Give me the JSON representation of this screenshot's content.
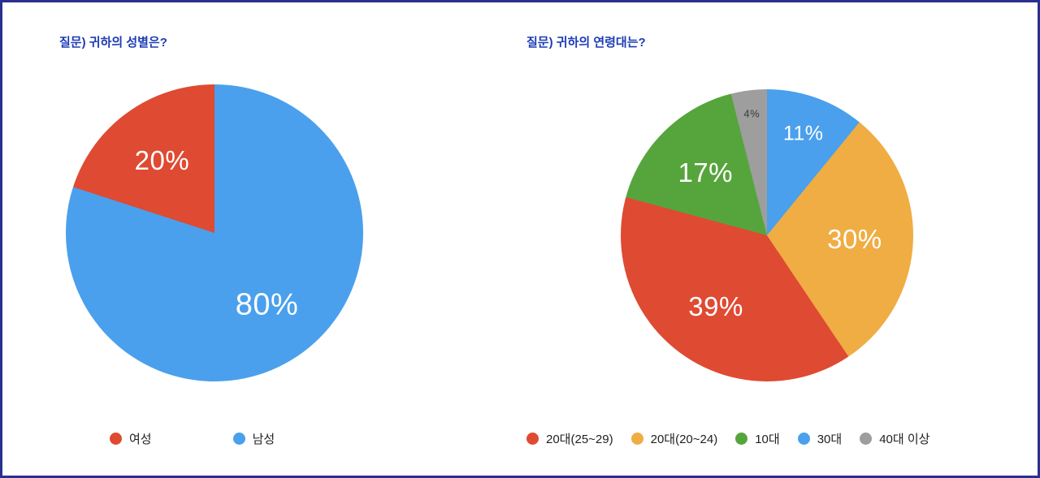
{
  "page": {
    "background": "#ffffff",
    "border_color": "#2b2f8f",
    "title_color": "#1d3cb5"
  },
  "chart_data": [
    {
      "type": "pie",
      "title": "질문) 귀하의 성별은?",
      "labels": [
        "남성",
        "여성"
      ],
      "values": [
        80,
        20
      ],
      "colors": [
        "#4aa0ec",
        "#df4a32"
      ],
      "slice_labels": [
        "80%",
        "20%"
      ],
      "slice_label_colors": [
        "#ffffff",
        "#ffffff"
      ],
      "legend_position": "bottom",
      "legend": [
        {
          "label": "여성",
          "color": "#df4a32"
        },
        {
          "label": "남성",
          "color": "#4aa0ec"
        }
      ]
    },
    {
      "type": "pie",
      "title": "질문) 귀하의 연령대는?",
      "labels": [
        "30대",
        "20대(20~24)",
        "20대(25~29)",
        "10대",
        "40대 이상"
      ],
      "values": [
        11,
        30,
        39,
        17,
        4
      ],
      "colors": [
        "#4aa0ec",
        "#efad43",
        "#df4a32",
        "#56a53c",
        "#9e9e9e"
      ],
      "slice_labels": [
        "11%",
        "30%",
        "39%",
        "17%",
        "4%"
      ],
      "slice_label_colors": [
        "#ffffff",
        "#ffffff",
        "#ffffff",
        "#ffffff",
        "#3a3a3a"
      ],
      "legend_position": "bottom",
      "legend": [
        {
          "label": "20대(25~29)",
          "color": "#df4a32"
        },
        {
          "label": "20대(20~24)",
          "color": "#efad43"
        },
        {
          "label": "10대",
          "color": "#56a53c"
        },
        {
          "label": "30대",
          "color": "#4aa0ec"
        },
        {
          "label": "40대 이상",
          "color": "#9e9e9e"
        }
      ]
    }
  ]
}
